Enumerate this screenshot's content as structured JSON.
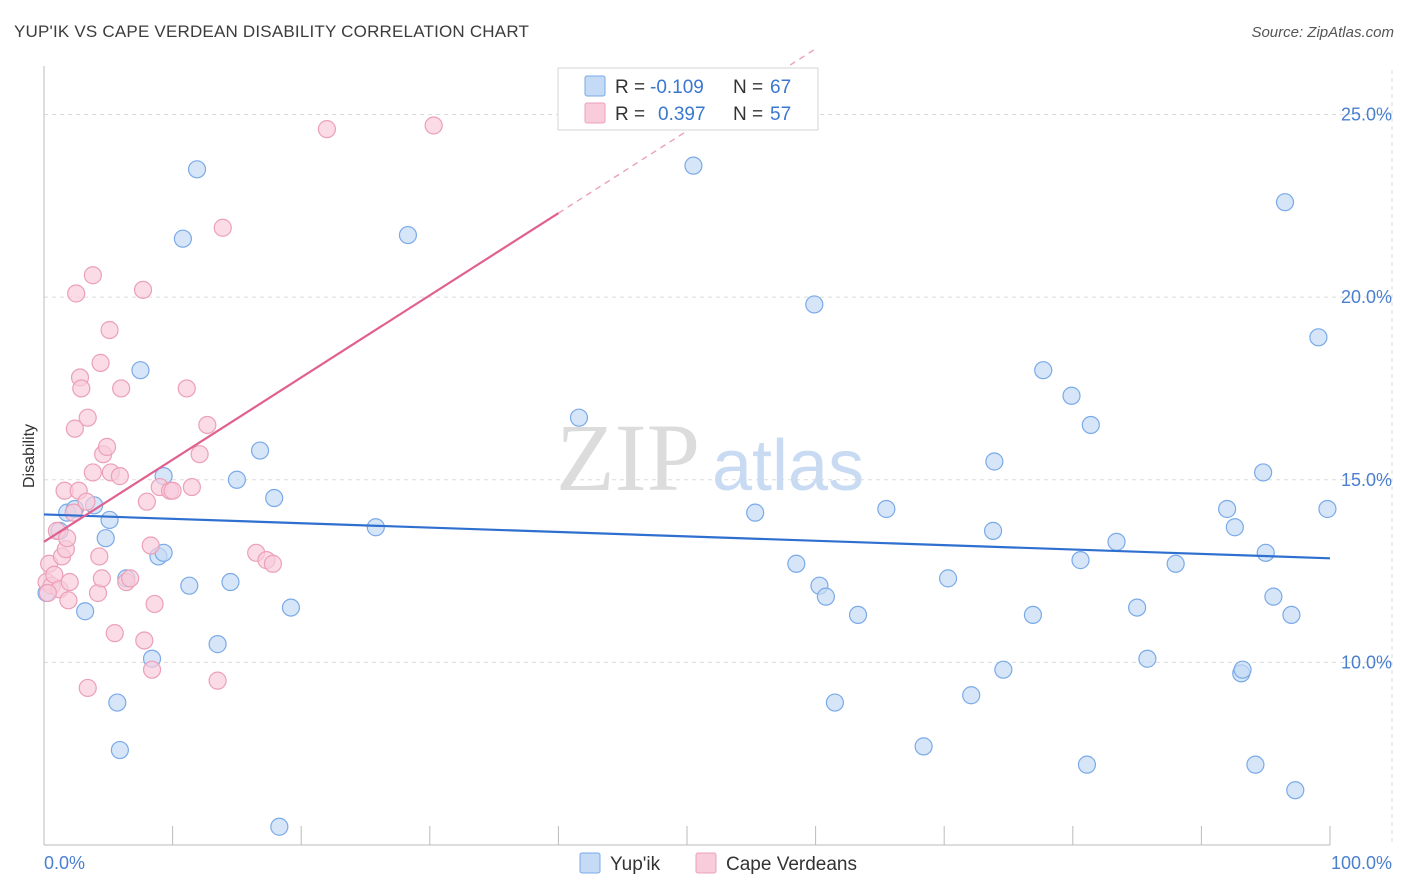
{
  "title": "YUP'IK VS CAPE VERDEAN DISABILITY CORRELATION CHART",
  "source": "Source: ZipAtlas.com",
  "watermark": {
    "zip": "ZIP",
    "atlas": "atlas"
  },
  "colors": {
    "blue": "#7aaae8",
    "blue_fill": "#c5dbf5",
    "blue_line": "#2f6fcf",
    "pink": "#eca0b8",
    "pink_fill": "#f8ccdb",
    "pink_line": "#e0608f",
    "label": "#4a7fd0",
    "grid": "#dcdcdc"
  },
  "legend_top": {
    "rows": [
      {
        "r_label": "R =",
        "r_value": "-0.109",
        "n_label": "N =",
        "n_value": "67",
        "series": "blue"
      },
      {
        "r_label": "R =",
        "r_value": "0.397",
        "n_label": "N =",
        "n_value": "57",
        "series": "pink"
      }
    ]
  },
  "chart_data": {
    "type": "scatter",
    "ylabel": "Disability",
    "xlim": [
      0,
      100
    ],
    "ylim": [
      5,
      26
    ],
    "x_ticks": [
      "0.0%",
      "100.0%"
    ],
    "y_ticks": [
      {
        "value": 10,
        "label": "10.0%"
      },
      {
        "value": 15,
        "label": "15.0%"
      },
      {
        "value": 20,
        "label": "20.0%"
      },
      {
        "value": 25,
        "label": "25.0%"
      }
    ],
    "grid": true,
    "legend_placement": "bottom-center",
    "series": [
      {
        "name": "Yup'ik",
        "color": "blue",
        "trend": {
          "x0": 0,
          "y0": 14.05,
          "x1": 100,
          "y1": 12.85
        },
        "points": [
          [
            0.2,
            11.9
          ],
          [
            1.2,
            13.6
          ],
          [
            1.8,
            14.1
          ],
          [
            2.4,
            14.2
          ],
          [
            3.2,
            11.4
          ],
          [
            3.9,
            14.3
          ],
          [
            5.1,
            13.9
          ],
          [
            5.7,
            8.9
          ],
          [
            5.9,
            7.6
          ],
          [
            6.4,
            12.3
          ],
          [
            7.5,
            18.0
          ],
          [
            8.4,
            10.1
          ],
          [
            8.9,
            12.9
          ],
          [
            9.3,
            15.1
          ],
          [
            10.8,
            21.6
          ],
          [
            11.3,
            12.1
          ],
          [
            11.9,
            23.5
          ],
          [
            14.5,
            12.2
          ],
          [
            15.0,
            15.0
          ],
          [
            16.8,
            15.8
          ],
          [
            17.9,
            14.5
          ],
          [
            18.3,
            5.5
          ],
          [
            19.2,
            11.5
          ],
          [
            25.8,
            13.7
          ],
          [
            28.3,
            21.7
          ],
          [
            41.6,
            16.7
          ],
          [
            50.5,
            23.6
          ],
          [
            55.3,
            14.1
          ],
          [
            58.5,
            12.7
          ],
          [
            60.3,
            12.1
          ],
          [
            60.8,
            11.8
          ],
          [
            59.9,
            19.8
          ],
          [
            61.5,
            8.9
          ],
          [
            63.3,
            11.3
          ],
          [
            65.5,
            14.2
          ],
          [
            68.4,
            7.7
          ],
          [
            70.3,
            12.3
          ],
          [
            72.1,
            9.1
          ],
          [
            73.8,
            13.6
          ],
          [
            73.9,
            15.5
          ],
          [
            74.6,
            9.8
          ],
          [
            76.9,
            11.3
          ],
          [
            77.7,
            18.0
          ],
          [
            79.9,
            17.3
          ],
          [
            80.6,
            12.8
          ],
          [
            81.4,
            16.5
          ],
          [
            81.1,
            7.2
          ],
          [
            83.4,
            13.3
          ],
          [
            85.0,
            11.5
          ],
          [
            85.8,
            10.1
          ],
          [
            88.0,
            12.7
          ],
          [
            92.0,
            14.2
          ],
          [
            92.6,
            13.7
          ],
          [
            93.1,
            9.7
          ],
          [
            93.2,
            9.8
          ],
          [
            94.2,
            7.2
          ],
          [
            94.8,
            15.2
          ],
          [
            95.0,
            13.0
          ],
          [
            95.6,
            11.8
          ],
          [
            96.5,
            22.6
          ],
          [
            97.0,
            11.3
          ],
          [
            97.3,
            6.5
          ],
          [
            99.1,
            18.9
          ],
          [
            99.8,
            14.2
          ],
          [
            9.3,
            13.0
          ],
          [
            4.8,
            13.4
          ],
          [
            13.5,
            10.5
          ]
        ]
      },
      {
        "name": "Cape Verdeans",
        "color": "pink",
        "trend": {
          "x0": 0,
          "y0": 13.3,
          "x1": 40,
          "y1": 22.3,
          "dash_x1": 60,
          "dash_y1": 26.8
        },
        "points": [
          [
            0.2,
            12.2
          ],
          [
            0.4,
            12.7
          ],
          [
            0.6,
            12.1
          ],
          [
            0.8,
            12.4
          ],
          [
            1.0,
            13.6
          ],
          [
            1.2,
            12.0
          ],
          [
            1.4,
            12.9
          ],
          [
            1.6,
            14.7
          ],
          [
            1.7,
            13.1
          ],
          [
            1.8,
            13.4
          ],
          [
            1.9,
            11.7
          ],
          [
            2.0,
            12.2
          ],
          [
            2.3,
            14.1
          ],
          [
            2.4,
            16.4
          ],
          [
            2.5,
            20.1
          ],
          [
            2.7,
            14.7
          ],
          [
            2.8,
            17.8
          ],
          [
            2.9,
            17.5
          ],
          [
            3.3,
            14.4
          ],
          [
            3.4,
            16.7
          ],
          [
            3.4,
            9.3
          ],
          [
            3.8,
            15.2
          ],
          [
            3.8,
            20.6
          ],
          [
            4.2,
            11.9
          ],
          [
            4.3,
            12.9
          ],
          [
            4.4,
            18.2
          ],
          [
            4.5,
            12.3
          ],
          [
            4.6,
            15.7
          ],
          [
            4.9,
            15.9
          ],
          [
            5.1,
            19.1
          ],
          [
            5.2,
            15.2
          ],
          [
            5.5,
            10.8
          ],
          [
            5.9,
            15.1
          ],
          [
            6.0,
            17.5
          ],
          [
            6.4,
            12.2
          ],
          [
            6.7,
            12.3
          ],
          [
            7.7,
            20.2
          ],
          [
            7.8,
            10.6
          ],
          [
            8.0,
            14.4
          ],
          [
            8.3,
            13.2
          ],
          [
            8.4,
            9.8
          ],
          [
            8.6,
            11.6
          ],
          [
            9.0,
            14.8
          ],
          [
            9.8,
            14.7
          ],
          [
            10.0,
            14.7
          ],
          [
            11.1,
            17.5
          ],
          [
            11.5,
            14.8
          ],
          [
            12.1,
            15.7
          ],
          [
            12.7,
            16.5
          ],
          [
            13.5,
            9.5
          ],
          [
            13.9,
            21.9
          ],
          [
            16.5,
            13.0
          ],
          [
            17.3,
            12.8
          ],
          [
            17.8,
            12.7
          ],
          [
            22.0,
            24.6
          ],
          [
            30.3,
            24.7
          ],
          [
            0.3,
            11.9
          ]
        ]
      }
    ]
  },
  "legend_bottom": [
    {
      "label": "Yup'ik",
      "color": "blue"
    },
    {
      "label": "Cape Verdeans",
      "color": "pink"
    }
  ]
}
